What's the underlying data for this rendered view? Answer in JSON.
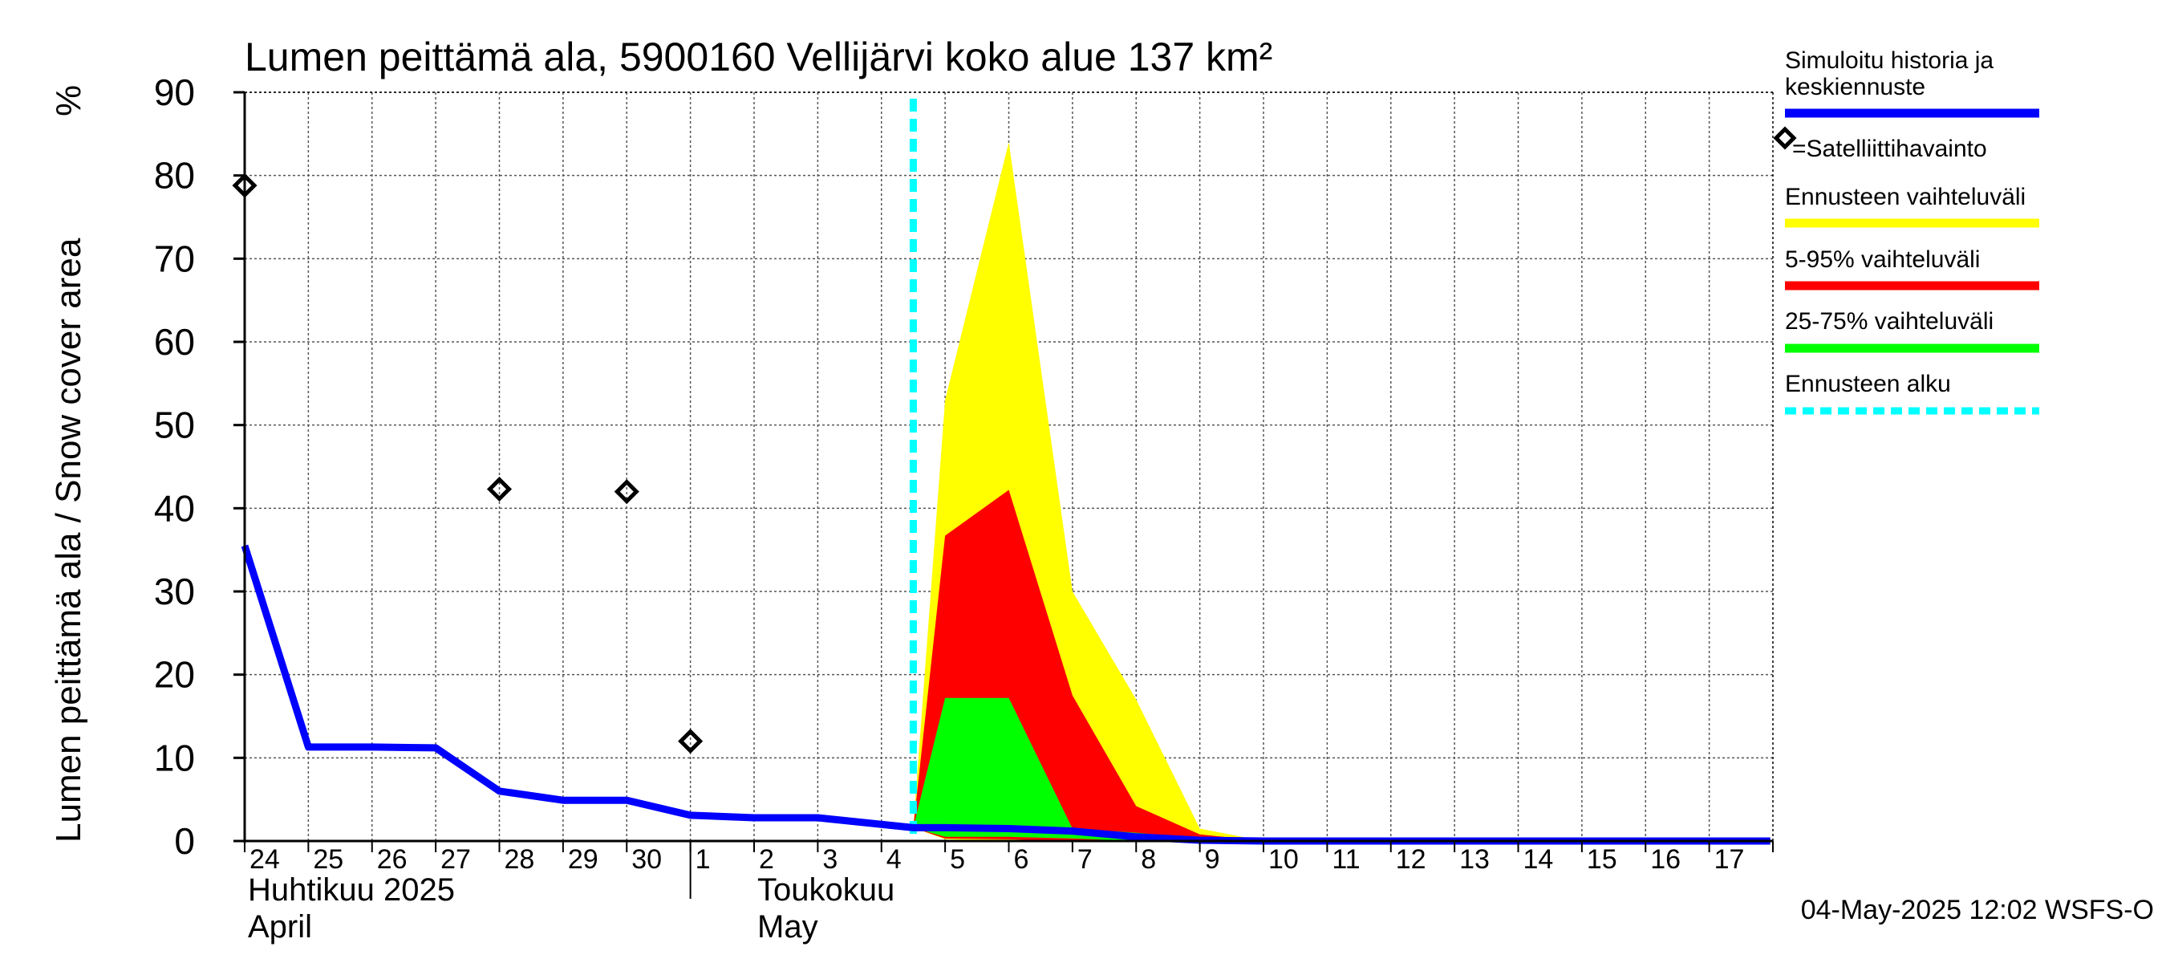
{
  "chart_data": {
    "type": "area",
    "title": "Lumen peittämä ala, 5900160 Vellijärvi koko alue 137 km²",
    "ylabel": "Lumen peittämä ala / Snow cover area",
    "yunit": "%",
    "ylim": [
      0,
      90
    ],
    "yticks": [
      0,
      10,
      20,
      30,
      40,
      50,
      60,
      70,
      80,
      90
    ],
    "xlim": [
      "2025-04-24",
      "2025-05-17"
    ],
    "xtick_labels": [
      "24",
      "25",
      "26",
      "27",
      "28",
      "29",
      "30",
      "1",
      "2",
      "3",
      "4",
      "5",
      "6",
      "7",
      "8",
      "9",
      "10",
      "11",
      "12",
      "13",
      "14",
      "15",
      "16",
      "17"
    ],
    "month_labels": [
      {
        "line1": "Huhtikuu  2025",
        "line2": "April",
        "date": "2025-04-24"
      },
      {
        "line1": "Toukokuu",
        "line2": "May",
        "date": "2025-05-02"
      }
    ],
    "grid": true,
    "legend_position": "right",
    "forecast_start": "2025-05-04 12:00",
    "series": [
      {
        "name": "Simuloitu historia ja keskiennuste",
        "kind": "line",
        "color": "#0000ff",
        "points": [
          [
            "2025-04-24",
            35.5
          ],
          [
            "2025-04-25",
            11.3
          ],
          [
            "2025-04-26",
            11.3
          ],
          [
            "2025-04-27",
            11.2
          ],
          [
            "2025-04-28",
            6.0
          ],
          [
            "2025-04-29",
            4.9
          ],
          [
            "2025-04-30",
            4.9
          ],
          [
            "2025-05-01",
            3.1
          ],
          [
            "2025-05-02",
            2.8
          ],
          [
            "2025-05-03",
            2.8
          ],
          [
            "2025-05-04 12:00",
            1.6
          ],
          [
            "2025-05-05",
            1.6
          ],
          [
            "2025-05-06",
            1.5
          ],
          [
            "2025-05-07",
            1.2
          ],
          [
            "2025-05-08",
            0.5
          ],
          [
            "2025-05-09",
            0.1
          ],
          [
            "2025-05-10",
            0.0
          ],
          [
            "2025-05-11",
            0.0
          ],
          [
            "2025-05-12",
            0.0
          ],
          [
            "2025-05-13",
            0.0
          ],
          [
            "2025-05-14",
            0.0
          ],
          [
            "2025-05-15",
            0.0
          ],
          [
            "2025-05-16",
            0.0
          ],
          [
            "2025-05-17",
            0.0
          ],
          [
            "2025-05-17 23:00",
            0.0
          ]
        ]
      },
      {
        "name": "=Satelliittihavainto",
        "kind": "scatter",
        "color": "#000000",
        "points": [
          [
            "2025-04-24",
            78.8
          ],
          [
            "2025-04-28",
            42.3
          ],
          [
            "2025-04-30",
            42.0
          ],
          [
            "2025-05-01",
            12.0
          ]
        ]
      },
      {
        "name": "Ennusteen vaihteluväli",
        "kind": "band",
        "color": "#ffff00",
        "points": [
          [
            "2025-05-04 12:00",
            1.6,
            1.6
          ],
          [
            "2025-05-05",
            53.0,
            0.2
          ],
          [
            "2025-05-06",
            84.0,
            0.0
          ],
          [
            "2025-05-07",
            30.0,
            0.0
          ],
          [
            "2025-05-08",
            17.0,
            0.0
          ],
          [
            "2025-05-09",
            1.5,
            0.0
          ],
          [
            "2025-05-10",
            0.0,
            0.0
          ]
        ]
      },
      {
        "name": "5-95% vaihteluväli",
        "kind": "band",
        "color": "#ff0000",
        "points": [
          [
            "2025-05-04 12:00",
            1.6,
            1.6
          ],
          [
            "2025-05-05",
            36.7,
            0.3
          ],
          [
            "2025-05-06",
            42.2,
            0.2
          ],
          [
            "2025-05-07",
            17.5,
            0.0
          ],
          [
            "2025-05-08",
            4.2,
            0.0
          ],
          [
            "2025-05-09",
            0.8,
            0.0
          ],
          [
            "2025-05-10",
            0.0,
            0.0
          ]
        ]
      },
      {
        "name": "25-75% vaihteluväli",
        "kind": "band",
        "color": "#00ff00",
        "points": [
          [
            "2025-05-04 12:00",
            1.6,
            1.6
          ],
          [
            "2025-05-05",
            17.2,
            0.5
          ],
          [
            "2025-05-06",
            17.2,
            0.5
          ],
          [
            "2025-05-07",
            1.5,
            0.3
          ],
          [
            "2025-05-08",
            1.0,
            0.0
          ],
          [
            "2025-05-09",
            0.3,
            0.0
          ],
          [
            "2025-05-10",
            0.0,
            0.0
          ]
        ]
      },
      {
        "name": "Ennusteen alku",
        "kind": "vline",
        "color": "#00ffff",
        "x": "2025-05-04 12:00"
      }
    ]
  },
  "legend": [
    {
      "text": "Simuloitu historia ja\nkeskiennuste",
      "color": "#0000ff",
      "style": "line"
    },
    {
      "text": "=Satelliittihavainto",
      "color": "#000000",
      "style": "marker"
    },
    {
      "text": "Ennusteen vaihteluväli",
      "color": "#ffff00",
      "style": "line"
    },
    {
      "text": "5-95% vaihteluväli",
      "color": "#ff0000",
      "style": "line"
    },
    {
      "text": "25-75% vaihteluväli",
      "color": "#00ff00",
      "style": "line"
    },
    {
      "text": "Ennusteen alku",
      "color": "#00ffff",
      "style": "dashed"
    }
  ],
  "footer": "04-May-2025 12:02 WSFS-O"
}
